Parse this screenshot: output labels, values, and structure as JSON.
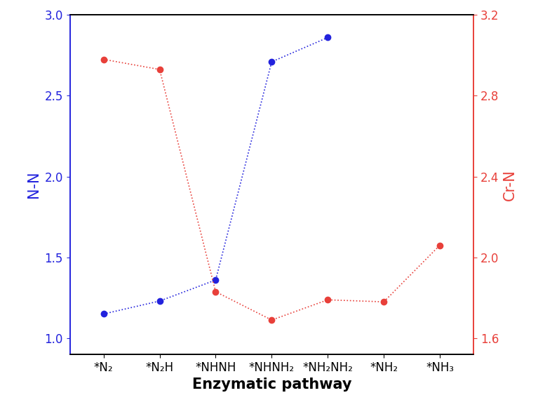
{
  "chart_data": {
    "type": "line",
    "x_label": "Enzymatic pathway",
    "y_label": "N-N",
    "y2_label": "Cr-N",
    "categories": [
      "*N₂",
      "*N₂H",
      "*NHNH",
      "*NHNH₂",
      "*NH₂NH₂",
      "*NH₂",
      "*NH₃"
    ],
    "ylim": [
      0.9,
      3.0
    ],
    "yticks": [
      1.0,
      1.5,
      2.0,
      2.5,
      3.0
    ],
    "y2lim": [
      1.52,
      3.2
    ],
    "y2ticks": [
      1.6,
      2.0,
      2.4,
      2.8,
      3.2
    ],
    "series": [
      {
        "name": "N-N",
        "color": "#2222dd",
        "axis": "y",
        "marker": "o",
        "line_style": "dotted",
        "values": [
          1.15,
          1.23,
          1.36,
          2.71,
          2.86,
          null,
          null
        ]
      },
      {
        "name": "Cr-N",
        "color": "#e8403a",
        "axis": "y2",
        "marker": "o",
        "line_style": "dotted",
        "values": [
          2.98,
          2.93,
          1.83,
          1.69,
          1.79,
          1.78,
          2.06
        ]
      }
    ]
  }
}
